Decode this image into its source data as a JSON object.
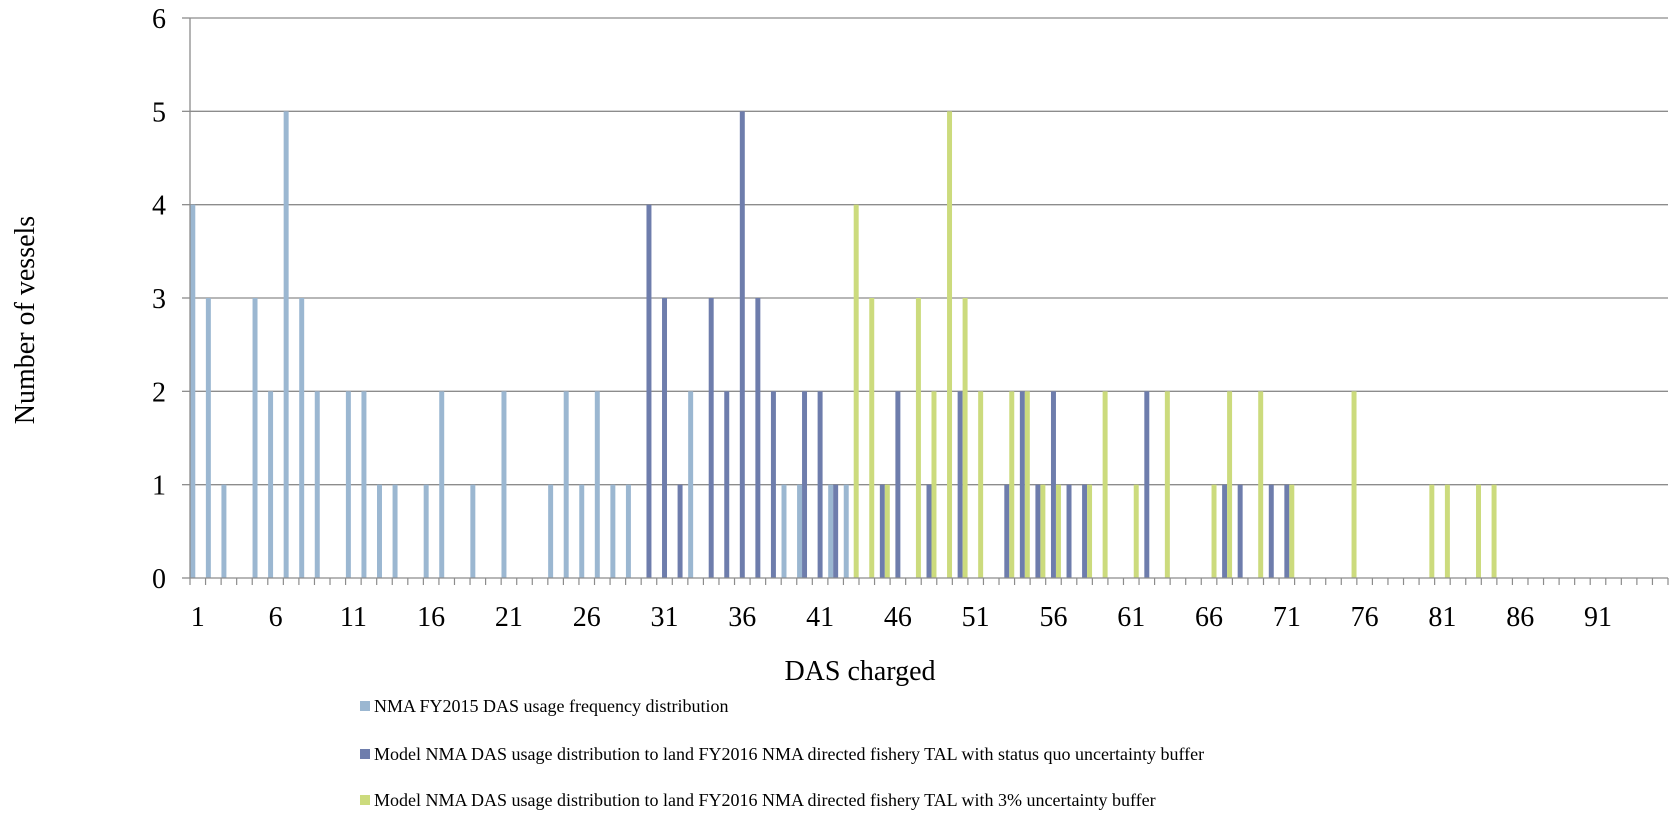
{
  "chart_data": {
    "type": "bar",
    "xlabel": "DAS charged",
    "ylabel": "Number of vessels",
    "ylim": [
      0,
      6
    ],
    "yticks": [
      0,
      1,
      2,
      3,
      4,
      5,
      6
    ],
    "x_categories_range": [
      1,
      95
    ],
    "x_tick_labels": [
      "1",
      "6",
      "11",
      "16",
      "21",
      "26",
      "31",
      "36",
      "41",
      "46",
      "51",
      "56",
      "61",
      "66",
      "71",
      "76",
      "81",
      "86",
      "91"
    ],
    "grid": "horizontal",
    "legend_position": "bottom",
    "series": [
      {
        "name": "NMA FY2015 DAS usage frequency distribution",
        "color": "#9BB7D1",
        "points": [
          [
            1,
            4
          ],
          [
            2,
            3
          ],
          [
            3,
            1
          ],
          [
            5,
            3
          ],
          [
            6,
            2
          ],
          [
            7,
            5
          ],
          [
            8,
            3
          ],
          [
            9,
            2
          ],
          [
            11,
            2
          ],
          [
            12,
            2
          ],
          [
            13,
            1
          ],
          [
            14,
            1
          ],
          [
            16,
            1
          ],
          [
            17,
            2
          ],
          [
            19,
            1
          ],
          [
            21,
            2
          ],
          [
            24,
            1
          ],
          [
            25,
            2
          ],
          [
            26,
            1
          ],
          [
            27,
            2
          ],
          [
            28,
            1
          ],
          [
            29,
            1
          ],
          [
            33,
            2
          ],
          [
            39,
            1
          ],
          [
            40,
            1
          ],
          [
            42,
            1
          ],
          [
            43,
            1
          ]
        ]
      },
      {
        "name": "Model NMA DAS usage distribution to land FY2016 NMA directed fishery TAL with status quo uncertainty buffer",
        "color": "#6E7DAC",
        "points": [
          [
            30,
            4
          ],
          [
            31,
            3
          ],
          [
            32,
            1
          ],
          [
            34,
            3
          ],
          [
            35,
            2
          ],
          [
            36,
            5
          ],
          [
            37,
            3
          ],
          [
            38,
            2
          ],
          [
            40,
            2
          ],
          [
            41,
            2
          ],
          [
            42,
            1
          ],
          [
            45,
            1
          ],
          [
            46,
            2
          ],
          [
            48,
            1
          ],
          [
            50,
            2
          ],
          [
            53,
            1
          ],
          [
            54,
            2
          ],
          [
            55,
            1
          ],
          [
            56,
            2
          ],
          [
            57,
            1
          ],
          [
            58,
            1
          ],
          [
            62,
            2
          ],
          [
            67,
            1
          ],
          [
            68,
            1
          ],
          [
            70,
            1
          ],
          [
            71,
            1
          ]
        ]
      },
      {
        "name": "Model NMA DAS usage distribution to land FY2016 NMA directed fishery TAL with 3% uncertainty buffer",
        "color": "#CCDB7D",
        "points": [
          [
            43,
            4
          ],
          [
            44,
            3
          ],
          [
            45,
            1
          ],
          [
            47,
            3
          ],
          [
            48,
            2
          ],
          [
            49,
            5
          ],
          [
            50,
            3
          ],
          [
            51,
            2
          ],
          [
            53,
            2
          ],
          [
            54,
            2
          ],
          [
            55,
            1
          ],
          [
            56,
            1
          ],
          [
            58,
            1
          ],
          [
            59,
            2
          ],
          [
            61,
            1
          ],
          [
            63,
            2
          ],
          [
            66,
            1
          ],
          [
            67,
            2
          ],
          [
            69,
            2
          ],
          [
            71,
            1
          ],
          [
            75,
            2
          ],
          [
            80,
            1
          ],
          [
            81,
            1
          ],
          [
            83,
            1
          ],
          [
            84,
            1
          ]
        ]
      }
    ]
  }
}
